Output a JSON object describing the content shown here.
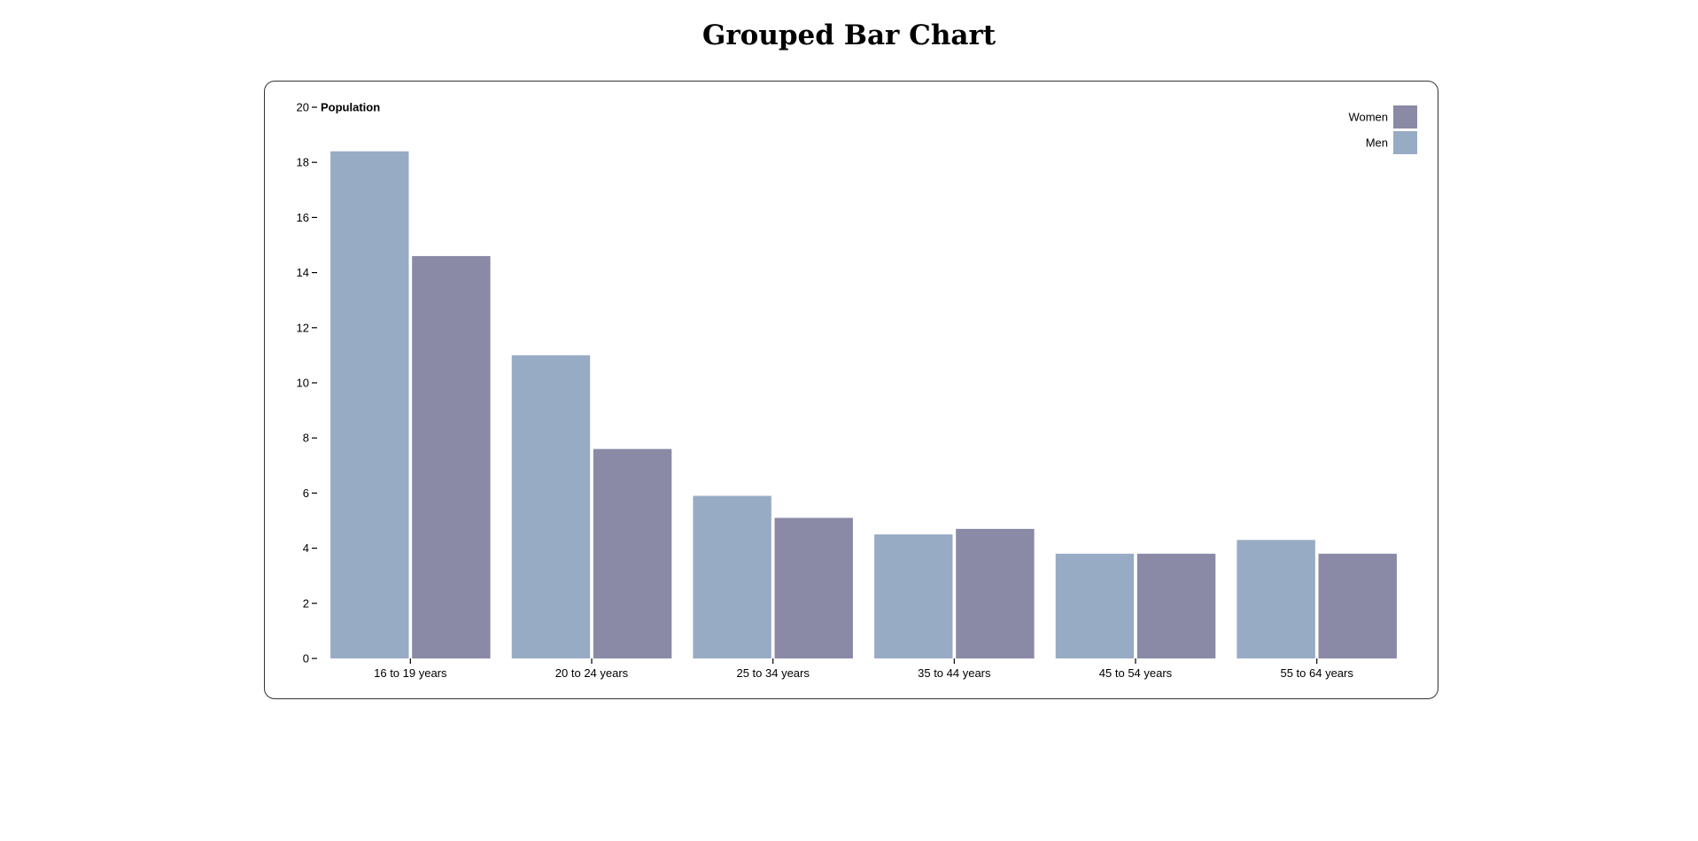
{
  "page": {
    "title": "Grouped Bar Chart"
  },
  "chart_data": {
    "type": "bar",
    "categories": [
      "16 to 19 years",
      "20 to 24 years",
      "25 to 34 years",
      "35 to 44 years",
      "45 to 54 years",
      "55 to 64 years"
    ],
    "series": [
      {
        "name": "Men",
        "color": "#98abc5",
        "values": [
          18.4,
          11.0,
          5.9,
          4.5,
          3.8,
          4.3
        ]
      },
      {
        "name": "Women",
        "color": "#8a89a6",
        "values": [
          14.6,
          7.6,
          5.1,
          4.7,
          3.8,
          3.8
        ]
      }
    ],
    "legend": {
      "placement": "top-right",
      "entries": [
        {
          "name": "Women",
          "color": "#8a89a6"
        },
        {
          "name": "Men",
          "color": "#98abc5"
        }
      ]
    },
    "title": "Grouped Bar Chart",
    "xlabel": "",
    "ylabel": "Population",
    "ylim": [
      0,
      20
    ],
    "yticks": [
      0,
      2,
      4,
      6,
      8,
      10,
      12,
      14,
      16,
      18,
      20
    ],
    "grid": false
  }
}
